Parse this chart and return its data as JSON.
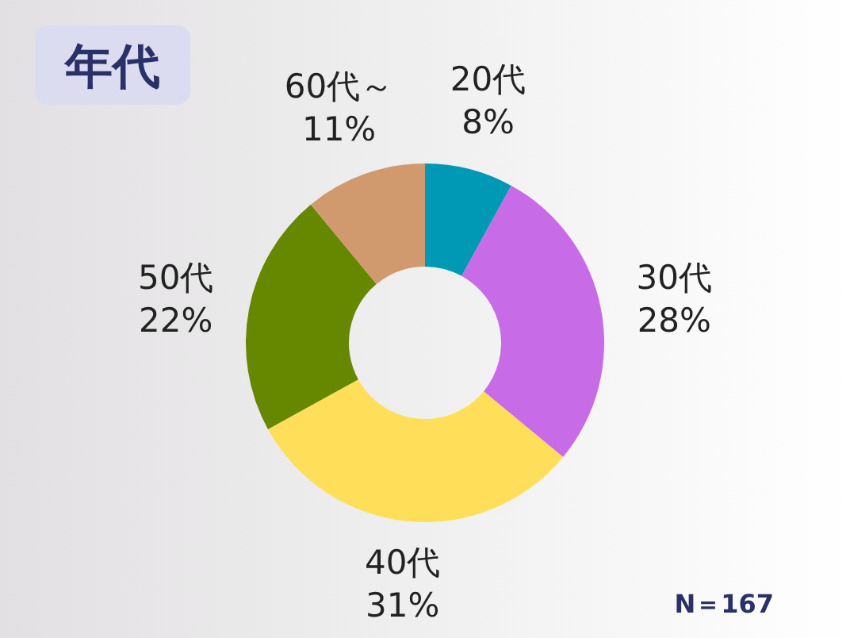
{
  "chart_data": {
    "type": "donut",
    "title": "年代",
    "categories": [
      "20代",
      "30代",
      "40代",
      "50代",
      "60代～"
    ],
    "values": [
      8,
      28,
      31,
      22,
      11
    ],
    "value_labels": [
      "8%",
      "28%",
      "31%",
      "22%",
      "11%"
    ],
    "colors": [
      "#0099b5",
      "#c86be6",
      "#ffdf5a",
      "#668800",
      "#d09a6e"
    ],
    "annotations": [
      "N＝167"
    ]
  }
}
